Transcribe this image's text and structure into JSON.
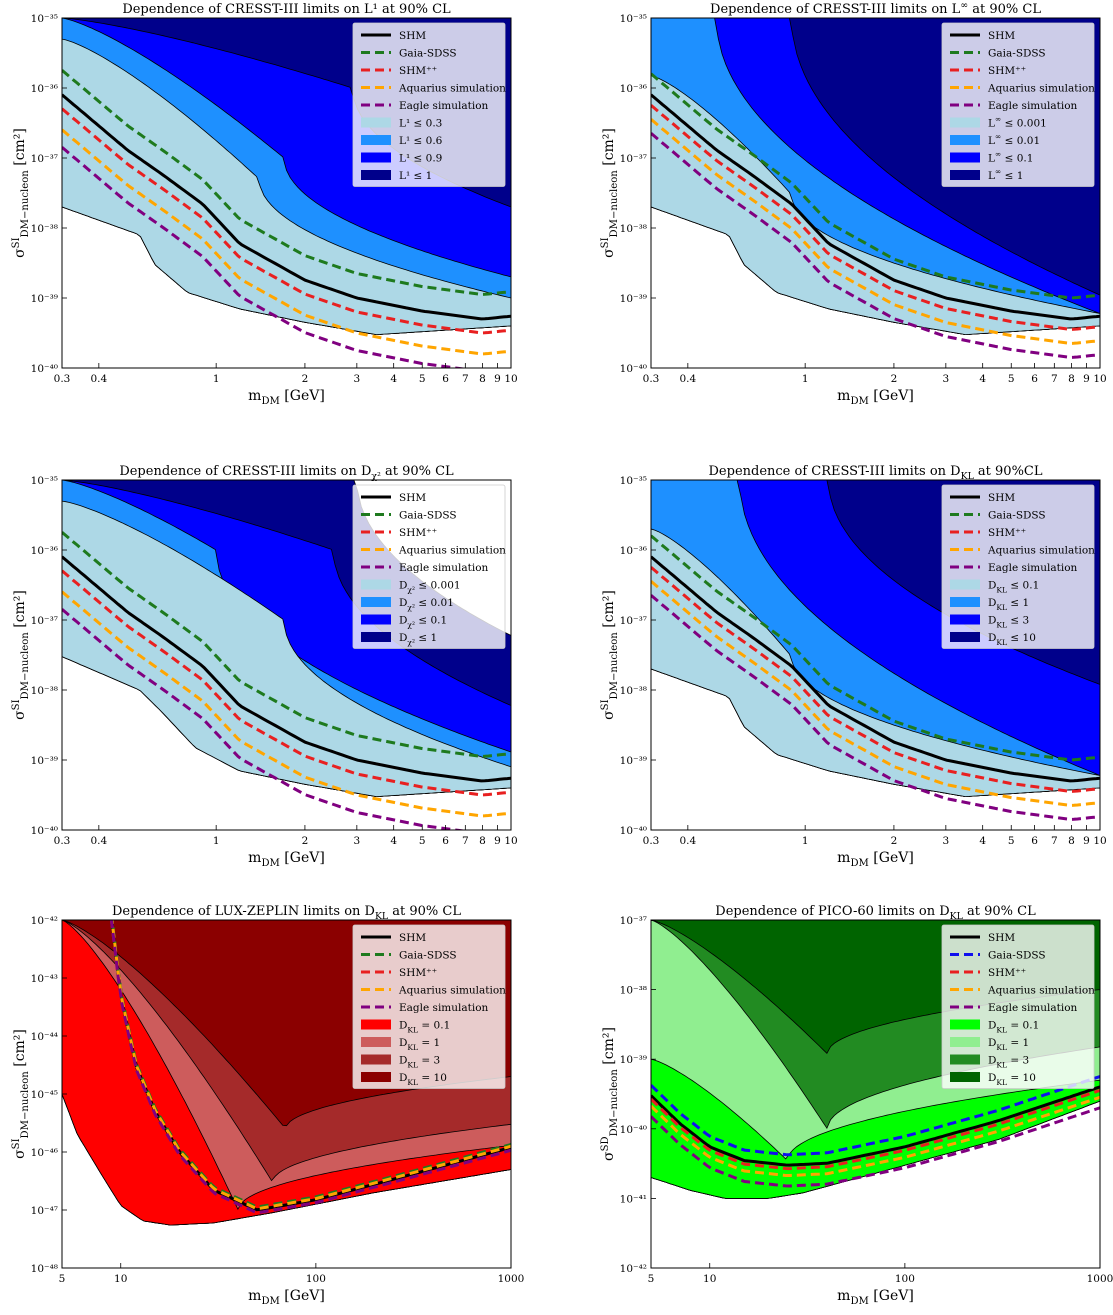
{
  "chart_data": [
    {
      "type": "area",
      "title": "Dependence of CRESST-III limits on L¹ at 90% CL",
      "xlabel": "m_DM [GeV]",
      "ylabel": "σ^SI_DM−nucleon [cm²]",
      "xscale": "log",
      "yscale": "log",
      "xlim": [
        0.3,
        10
      ],
      "ylim": [
        1e-40,
        1e-35
      ],
      "x_ticks": [
        0.3,
        0.4,
        1,
        2,
        3,
        4,
        5,
        6,
        7,
        8,
        9,
        10
      ],
      "x_tick_labels": [
        "0.3",
        "0.4",
        "1",
        "2",
        "3",
        "4",
        "5",
        "6",
        "7",
        "8",
        "9",
        "10"
      ],
      "y_tick_labels": [
        "10⁻⁴⁰",
        "10⁻³⁹",
        "10⁻³⁸",
        "10⁻³⁷",
        "10⁻³⁶",
        "10⁻³⁵"
      ],
      "legend_position": "top-right",
      "legend_lines": [
        "SHM",
        "Gaia-SDSS",
        "SHM⁺⁺",
        "Aquarius simulation",
        "Eagle simulation"
      ],
      "line_colors": [
        "#000000",
        "#1e7a1e",
        "#e82020",
        "#ffa500",
        "#800080"
      ],
      "regions": [
        {
          "name": "L¹ ≤ 0.3",
          "color": "#add8e6",
          "upper_left": 5e-36,
          "upper_knee_x": 1.4,
          "upper_knee_y": 5e-38,
          "upper_right": 1e-39
        },
        {
          "name": "L¹ ≤ 0.6",
          "color": "#1e90ff",
          "upper_left": 1e-35,
          "upper_knee_x": 1.7,
          "upper_knee_y": 1e-37,
          "upper_right": 2e-39
        },
        {
          "name": "L¹ ≤ 0.9",
          "color": "#0000ff",
          "upper_left": 1e-35,
          "upper_knee_x": 2.9,
          "upper_knee_y": 1e-36,
          "upper_right": 2e-38
        },
        {
          "name": "L¹ ≤ 1",
          "color": "#00008b",
          "upper_left": 1e-35,
          "upper_knee_x": 10,
          "upper_knee_y": 1e-35,
          "upper_right": 1e-35
        }
      ],
      "shm_curve": {
        "x": [
          0.3,
          0.5,
          0.65,
          0.9,
          1.2,
          2,
          3,
          5,
          8,
          10
        ],
        "y": [
          8e-37,
          1.3e-37,
          6e-38,
          2.2e-38,
          6e-39,
          1.8e-39,
          1e-39,
          6.5e-40,
          5e-40,
          5.5e-40
        ]
      },
      "line_offsets_decades": [
        0,
        0.35,
        -0.2,
        -0.5,
        -0.75
      ],
      "lower_boundary": {
        "x": [
          0.3,
          0.55,
          0.62,
          0.8,
          1.2,
          2,
          3.5,
          10
        ],
        "y": [
          2e-38,
          8e-39,
          3e-39,
          1.2e-39,
          7e-40,
          4.5e-40,
          3e-40,
          4e-40
        ]
      }
    },
    {
      "type": "area",
      "title": "Dependence of CRESST-III limits on L^∞ at 90% CL",
      "xlabel": "m_DM [GeV]",
      "ylabel": "σ^SI_DM−nucleon [cm²]",
      "xscale": "log",
      "yscale": "log",
      "xlim": [
        0.3,
        10
      ],
      "ylim": [
        1e-40,
        1e-35
      ],
      "x_ticks": [
        0.3,
        0.4,
        1,
        2,
        3,
        4,
        5,
        6,
        7,
        8,
        9,
        10
      ],
      "x_tick_labels": [
        "0.3",
        "0.4",
        "1",
        "2",
        "3",
        "4",
        "5",
        "6",
        "7",
        "8",
        "9",
        "10"
      ],
      "y_tick_labels": [
        "10⁻⁴⁰",
        "10⁻³⁹",
        "10⁻³⁸",
        "10⁻³⁷",
        "10⁻³⁶",
        "10⁻³⁵"
      ],
      "legend_position": "top-right",
      "legend_lines": [
        "SHM",
        "Gaia-SDSS",
        "SHM⁺⁺",
        "Aquarius simulation",
        "Eagle simulation"
      ],
      "line_colors": [
        "#000000",
        "#1e7a1e",
        "#e82020",
        "#ffa500",
        "#800080"
      ],
      "regions": [
        {
          "name": "L^∞ ≤ 0.001",
          "color": "#add8e6",
          "upper_left": 1.5e-36,
          "upper_knee_x": 0.9,
          "upper_knee_y": 3e-38,
          "upper_right": 6e-40
        },
        {
          "name": "L^∞ ≤ 0.01",
          "color": "#1e90ff",
          "upper_left": 1e-35,
          "upper_knee_x": 0.5,
          "upper_knee_y": 1e-35,
          "upper_right": 6e-40
        },
        {
          "name": "L^∞ ≤ 0.1",
          "color": "#0000ff",
          "upper_left": 1e-35,
          "upper_knee_x": 0.9,
          "upper_knee_y": 1e-35,
          "upper_right": 1.1e-39
        },
        {
          "name": "L^∞ ≤ 1",
          "color": "#00008b",
          "upper_left": 1e-35,
          "upper_knee_x": 10,
          "upper_knee_y": 1e-35,
          "upper_right": 1e-35
        }
      ],
      "shm_curve": {
        "x": [
          0.3,
          0.5,
          0.65,
          0.9,
          1.2,
          2,
          3,
          5,
          8,
          10
        ],
        "y": [
          8e-37,
          1.3e-37,
          6e-38,
          2.2e-38,
          6e-39,
          1.8e-39,
          1e-39,
          6.5e-40,
          5e-40,
          5.5e-40
        ]
      },
      "line_offsets_decades": [
        0,
        0.3,
        -0.15,
        -0.35,
        -0.55
      ],
      "lower_boundary": {
        "x": [
          0.3,
          0.55,
          0.62,
          0.8,
          1.2,
          2,
          3.5,
          10
        ],
        "y": [
          2e-38,
          8e-39,
          3e-39,
          1.2e-39,
          7e-40,
          4.5e-40,
          3e-40,
          4e-40
        ]
      }
    },
    {
      "type": "area",
      "title": "Dependence of CRESST-III limits on D_χ² at 90% CL",
      "xlabel": "m_DM [GeV]",
      "ylabel": "σ^SI_DM−nucleon [cm²]",
      "xscale": "log",
      "yscale": "log",
      "xlim": [
        0.3,
        10
      ],
      "ylim": [
        1e-40,
        1e-35
      ],
      "x_ticks": [
        0.3,
        0.4,
        1,
        2,
        3,
        4,
        5,
        6,
        7,
        8,
        9,
        10
      ],
      "x_tick_labels": [
        "0.3",
        "0.4",
        "1",
        "2",
        "3",
        "4",
        "5",
        "6",
        "7",
        "8",
        "9",
        "10"
      ],
      "y_tick_labels": [
        "10⁻⁴⁰",
        "10⁻³⁹",
        "10⁻³⁸",
        "10⁻³⁷",
        "10⁻³⁶",
        "10⁻³⁵"
      ],
      "legend_position": "top-right",
      "legend_lines": [
        "SHM",
        "Gaia-SDSS",
        "SHM⁺⁺",
        "Aquarius simulation",
        "Eagle simulation"
      ],
      "line_colors": [
        "#000000",
        "#1e7a1e",
        "#e82020",
        "#ffa500",
        "#800080"
      ],
      "regions": [
        {
          "name": "D_χ² ≤ 0.001",
          "color": "#add8e6",
          "upper_left": 5e-36,
          "upper_knee_x": 1.7,
          "upper_knee_y": 1e-37,
          "upper_right": 8e-40
        },
        {
          "name": "D_χ² ≤ 0.01",
          "color": "#1e90ff",
          "upper_left": 1e-35,
          "upper_knee_x": 1,
          "upper_knee_y": 1e-36,
          "upper_right": 1.3e-39
        },
        {
          "name": "D_χ² ≤ 0.1",
          "color": "#0000ff",
          "upper_left": 1e-35,
          "upper_knee_x": 2.5,
          "upper_knee_y": 1e-36,
          "upper_right": 6e-39
        },
        {
          "name": "D_χ² ≤ 1",
          "color": "#00008b",
          "upper_left": 1e-35,
          "upper_knee_x": 3,
          "upper_knee_y": 1e-35,
          "upper_right": 6e-38
        }
      ],
      "shm_curve": {
        "x": [
          0.3,
          0.5,
          0.65,
          0.9,
          1.2,
          2,
          3,
          5,
          8,
          10
        ],
        "y": [
          8e-37,
          1.3e-37,
          6e-38,
          2.2e-38,
          6e-39,
          1.8e-39,
          1e-39,
          6.5e-40,
          5e-40,
          5.5e-40
        ]
      },
      "line_offsets_decades": [
        0,
        0.35,
        -0.2,
        -0.5,
        -0.75
      ],
      "lower_boundary": {
        "x": [
          0.3,
          0.55,
          0.65,
          0.85,
          1.2,
          2,
          3.5,
          10
        ],
        "y": [
          3e-38,
          1e-38,
          5e-39,
          1.5e-39,
          7e-40,
          4.5e-40,
          3e-40,
          4e-40
        ]
      }
    },
    {
      "type": "area",
      "title": "Dependence of CRESST-III limits on D_KL at 90%CL",
      "xlabel": "m_DM [GeV]",
      "ylabel": "σ^SI_DM−nucleon [cm²]",
      "xscale": "log",
      "yscale": "log",
      "xlim": [
        0.3,
        10
      ],
      "ylim": [
        1e-40,
        1e-35
      ],
      "x_ticks": [
        0.3,
        0.4,
        1,
        2,
        3,
        4,
        5,
        6,
        7,
        8,
        9,
        10
      ],
      "x_tick_labels": [
        "0.3",
        "0.4",
        "1",
        "2",
        "3",
        "4",
        "5",
        "6",
        "7",
        "8",
        "9",
        "10"
      ],
      "y_tick_labels": [
        "10⁻⁴⁰",
        "10⁻³⁹",
        "10⁻³⁸",
        "10⁻³⁷",
        "10⁻³⁶",
        "10⁻³⁵"
      ],
      "legend_position": "top-right",
      "legend_lines": [
        "SHM",
        "Gaia-SDSS",
        "SHM⁺⁺",
        "Aquarius simulation",
        "Eagle simulation"
      ],
      "line_colors": [
        "#000000",
        "#1e7a1e",
        "#e82020",
        "#ffa500",
        "#800080"
      ],
      "regions": [
        {
          "name": "D_KL ≤ 0.1",
          "color": "#add8e6",
          "upper_left": 2e-36,
          "upper_knee_x": 0.9,
          "upper_knee_y": 3e-38,
          "upper_right": 6e-40
        },
        {
          "name": "D_KL ≤ 1",
          "color": "#1e90ff",
          "upper_left": 1e-35,
          "upper_knee_x": 0.6,
          "upper_knee_y": 1e-35,
          "upper_right": 6e-40
        },
        {
          "name": "D_KL ≤ 3",
          "color": "#0000ff",
          "upper_left": 1e-35,
          "upper_knee_x": 1.2,
          "upper_knee_y": 1e-35,
          "upper_right": 1.2e-38
        },
        {
          "name": "D_KL ≤ 10",
          "color": "#00008b",
          "upper_left": 1e-35,
          "upper_knee_x": 10,
          "upper_knee_y": 1e-35,
          "upper_right": 1e-35
        }
      ],
      "shm_curve": {
        "x": [
          0.3,
          0.5,
          0.65,
          0.9,
          1.2,
          2,
          3,
          5,
          8,
          10
        ],
        "y": [
          8e-37,
          1.3e-37,
          6e-38,
          2.2e-38,
          6e-39,
          1.8e-39,
          1e-39,
          6.5e-40,
          5e-40,
          5.5e-40
        ]
      },
      "line_offsets_decades": [
        0,
        0.3,
        -0.15,
        -0.35,
        -0.55
      ],
      "lower_boundary": {
        "x": [
          0.3,
          0.55,
          0.62,
          0.8,
          1.2,
          2,
          3.5,
          10
        ],
        "y": [
          2e-38,
          8e-39,
          3e-39,
          1.2e-39,
          7e-40,
          4.5e-40,
          3e-40,
          4e-40
        ]
      }
    },
    {
      "type": "area",
      "title": "Dependence of LUX-ZEPLIN limits on D_KL at 90% CL",
      "xlabel": "m_DM [GeV]",
      "ylabel": "σ^SI_DM−nucleon [cm²]",
      "xscale": "log",
      "yscale": "log",
      "xlim": [
        5,
        1000
      ],
      "ylim": [
        1e-48,
        1e-42
      ],
      "x_ticks": [
        5,
        10,
        100,
        1000
      ],
      "x_tick_labels": [
        "5",
        "10",
        "100",
        "1000"
      ],
      "y_tick_labels": [
        "10⁻⁴⁸",
        "10⁻⁴⁷",
        "10⁻⁴⁶",
        "10⁻⁴⁵",
        "10⁻⁴⁴",
        "10⁻⁴³",
        "10⁻⁴²"
      ],
      "legend_position": "top-right",
      "legend_lines": [
        "SHM",
        "Gaia-SDSS",
        "SHM⁺⁺",
        "Aquarius simulation",
        "Eagle simulation"
      ],
      "line_colors": [
        "#000000",
        "#1e7a1e",
        "#e82020",
        "#ffa500",
        "#800080"
      ],
      "regions": [
        {
          "name": "D_KL = 0.1",
          "color": "#ff0000",
          "upper_left": 1e-42,
          "upper_knee_x": 40,
          "upper_knee_y": 1e-47,
          "upper_right": 1.3e-46
        },
        {
          "name": "D_KL = 1",
          "color": "#cd5c5c",
          "upper_left": 1e-42,
          "upper_knee_x": 60,
          "upper_knee_y": 3e-47,
          "upper_right": 3e-46
        },
        {
          "name": "D_KL = 3",
          "color": "#a52a2a",
          "upper_left": 1e-42,
          "upper_knee_x": 70,
          "upper_knee_y": 2.5e-46,
          "upper_right": 2e-45
        },
        {
          "name": "D_KL = 10",
          "color": "#8b0000",
          "upper_left": 1e-42,
          "upper_knee_x": 1000,
          "upper_knee_y": 1e-42,
          "upper_right": 1e-42
        }
      ],
      "shm_curve": {
        "x": [
          9,
          10,
          12,
          15,
          20,
          30,
          50,
          100,
          300,
          1000
        ],
        "y": [
          1e-42,
          5e-44,
          3e-45,
          5e-46,
          1e-46,
          2.2e-47,
          1e-47,
          1.5e-47,
          4e-47,
          1.2e-46
        ]
      },
      "line_offsets_decades": [
        0,
        0.05,
        -0.05,
        0.02,
        -0.05
      ],
      "lower_boundary": {
        "x": [
          5,
          6,
          8,
          10,
          13,
          18,
          30,
          60,
          200,
          1000
        ],
        "y": [
          1e-45,
          2e-46,
          4e-47,
          1.2e-47,
          6.5e-48,
          5.5e-48,
          6e-48,
          9e-48,
          2e-47,
          5e-47
        ]
      }
    },
    {
      "type": "area",
      "title": "Dependence of PICO-60 limits on D_KL at 90% CL",
      "xlabel": "m_DM [GeV]",
      "ylabel": "σ^SD_DM−nucleon [cm²]",
      "xscale": "log",
      "yscale": "log",
      "xlim": [
        5,
        1000
      ],
      "ylim": [
        1e-42,
        1e-37
      ],
      "x_ticks": [
        5,
        10,
        100,
        1000
      ],
      "x_tick_labels": [
        "5",
        "10",
        "100",
        "1000"
      ],
      "y_tick_labels": [
        "10⁻⁴²",
        "10⁻⁴¹",
        "10⁻⁴⁰",
        "10⁻³⁹",
        "10⁻³⁸",
        "10⁻³⁷"
      ],
      "legend_position": "top-right",
      "legend_lines": [
        "SHM",
        "Gaia-SDSS",
        "SHM⁺⁺",
        "Aquarius simulation",
        "Eagle simulation"
      ],
      "line_colors": [
        "#000000",
        "#1010ee",
        "#e82020",
        "#ffa500",
        "#800080"
      ],
      "regions": [
        {
          "name": "D_KL = 0.1",
          "color": "#00ff00",
          "upper_left": 1e-39,
          "upper_knee_x": 25,
          "upper_knee_y": 3.5e-41,
          "upper_right": 5e-40
        },
        {
          "name": "D_KL = 1",
          "color": "#90ee90",
          "upper_left": 1e-37,
          "upper_knee_x": 40,
          "upper_knee_y": 1e-40,
          "upper_right": 1.5e-39
        },
        {
          "name": "D_KL = 3",
          "color": "#228b22",
          "upper_left": 1e-37,
          "upper_knee_x": 40,
          "upper_knee_y": 1.2e-39,
          "upper_right": 1e-38
        },
        {
          "name": "D_KL = 10",
          "color": "#006400",
          "upper_left": 1e-37,
          "upper_knee_x": 1000,
          "upper_knee_y": 1e-37,
          "upper_right": 1e-37
        }
      ],
      "shm_curve": {
        "x": [
          5,
          7,
          10,
          15,
          25,
          40,
          100,
          300,
          1000
        ],
        "y": [
          3e-40,
          1.2e-40,
          5.5e-41,
          3.5e-41,
          3e-41,
          3.2e-41,
          5.5e-41,
          1.3e-40,
          4e-40
        ]
      },
      "line_offsets_decades": [
        0,
        0.15,
        -0.05,
        -0.15,
        -0.3
      ],
      "lower_boundary": {
        "x": [
          5,
          8,
          12,
          20,
          30,
          100,
          300,
          1000
        ],
        "y": [
          2e-41,
          1.3e-41,
          1e-41,
          1e-41,
          1.2e-41,
          3e-41,
          7e-41,
          2.5e-40
        ]
      }
    }
  ]
}
